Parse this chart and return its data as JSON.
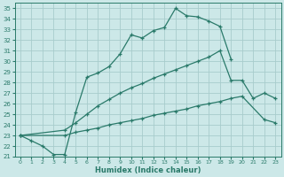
{
  "xlabel": "Humidex (Indice chaleur)",
  "bg_color": "#cce8e8",
  "grid_color": "#a8cccc",
  "line_color": "#2a7a6a",
  "xlim": [
    -0.5,
    23.5
  ],
  "ylim": [
    21,
    35.5
  ],
  "xticks": [
    0,
    1,
    2,
    3,
    4,
    5,
    6,
    7,
    8,
    9,
    10,
    11,
    12,
    13,
    14,
    15,
    16,
    17,
    18,
    19,
    20,
    21,
    22,
    23
  ],
  "yticks": [
    21,
    22,
    23,
    24,
    25,
    26,
    27,
    28,
    29,
    30,
    31,
    32,
    33,
    34,
    35
  ],
  "line1_x": [
    0,
    1,
    2,
    3,
    4,
    5,
    6,
    7,
    8,
    9,
    10,
    11,
    12,
    13,
    14,
    15,
    16,
    17,
    18,
    19
  ],
  "line1_y": [
    23.0,
    22.5,
    22.0,
    21.2,
    21.2,
    25.2,
    28.5,
    28.9,
    29.5,
    30.7,
    32.5,
    32.2,
    32.9,
    33.2,
    35.0,
    34.3,
    34.2,
    33.8,
    33.3,
    30.2
  ],
  "line2_x": [
    0,
    4,
    5,
    6,
    7,
    8,
    9,
    10,
    11,
    12,
    13,
    14,
    15,
    16,
    17,
    18,
    19,
    20,
    21,
    22,
    23
  ],
  "line2_y": [
    23.0,
    23.5,
    24.2,
    25.0,
    25.8,
    26.4,
    27.0,
    27.5,
    27.9,
    28.4,
    28.8,
    29.2,
    29.6,
    30.0,
    30.4,
    31.0,
    28.2,
    28.2,
    26.5,
    27.0,
    26.5
  ],
  "line3_x": [
    0,
    4,
    5,
    6,
    7,
    8,
    9,
    10,
    11,
    12,
    13,
    14,
    15,
    16,
    17,
    18,
    19,
    20,
    22,
    23
  ],
  "line3_y": [
    23.0,
    23.0,
    23.3,
    23.5,
    23.7,
    24.0,
    24.2,
    24.4,
    24.6,
    24.9,
    25.1,
    25.3,
    25.5,
    25.8,
    26.0,
    26.2,
    26.5,
    26.7,
    24.5,
    24.2
  ]
}
